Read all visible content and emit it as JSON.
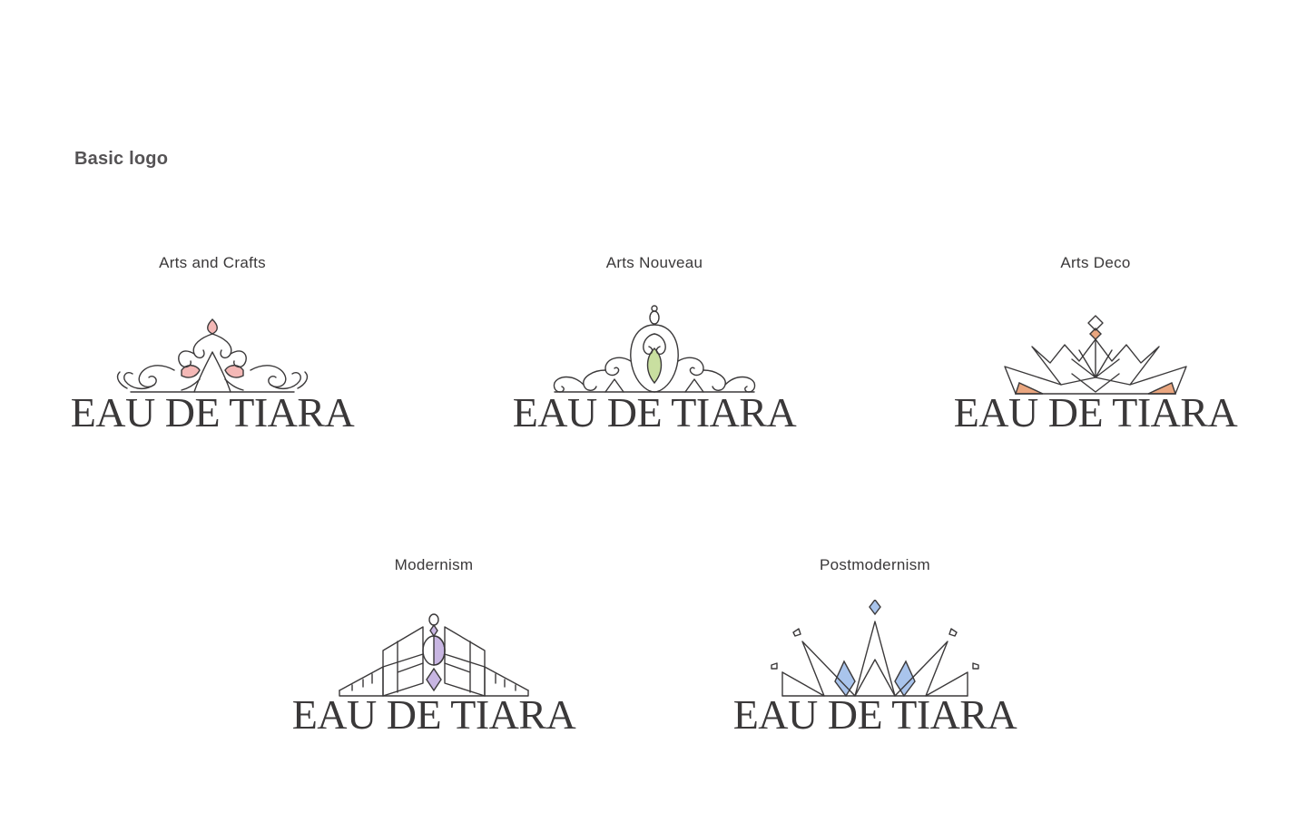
{
  "section": {
    "title": "Basic logo"
  },
  "logos": [
    {
      "label": "Arts and Crafts",
      "wordmark": "EAU DE TIARA",
      "icon": "floral-scroll-tiara-icon",
      "accent": "#f4b8b6"
    },
    {
      "label": "Arts  Nouveau",
      "wordmark": "EAU DE TIARA",
      "icon": "swirl-tiara-icon",
      "accent": "#c9dfa0"
    },
    {
      "label": "Arts Deco",
      "wordmark": "EAU DE TIARA",
      "icon": "geometric-fan-crown-icon",
      "accent": "#eaa67f"
    },
    {
      "label": "Modernism",
      "wordmark": "EAU DE TIARA",
      "icon": "architectural-tiara-icon",
      "accent": "#c8b6e2"
    },
    {
      "label": "Postmodernism",
      "wordmark": "EAU DE TIARA",
      "icon": "spike-crown-icon",
      "accent": "#a9c4ec"
    }
  ]
}
